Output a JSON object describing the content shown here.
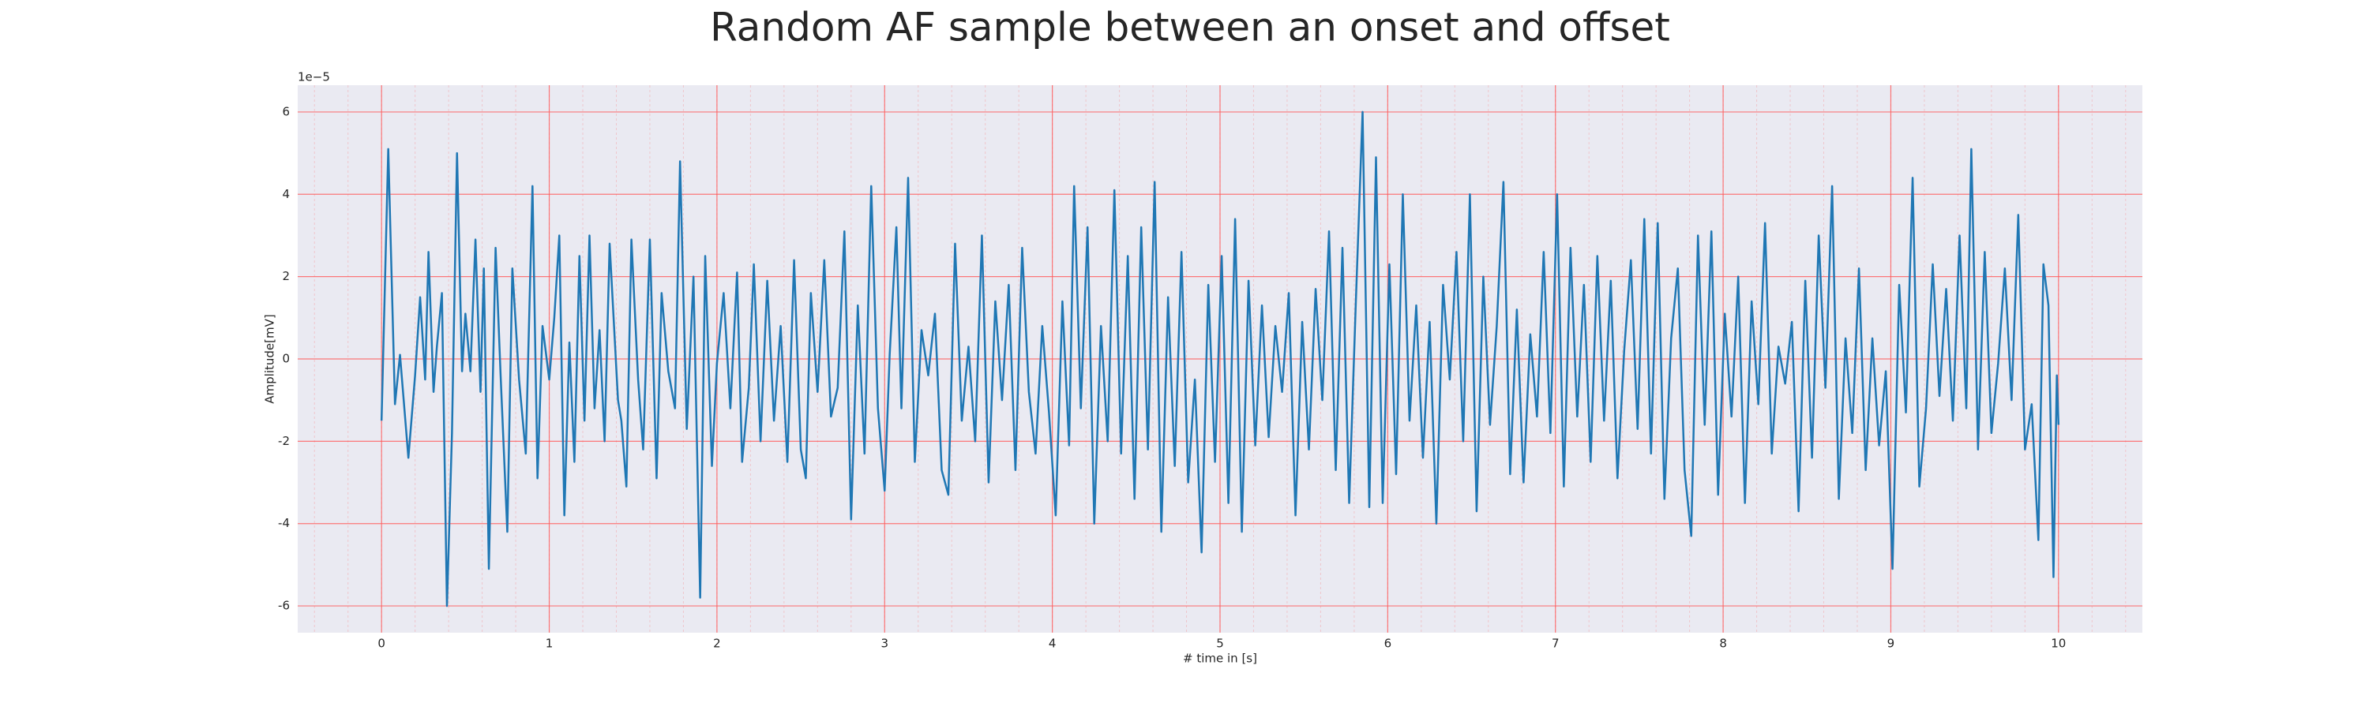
{
  "chart_data": {
    "type": "line",
    "title": "Random AF sample between an onset and offset",
    "x_label": "# time in [s]",
    "y_label": "Amplitude[mV]",
    "y_offset_label": "1e−5",
    "xlim": [
      -0.5,
      10.5
    ],
    "ylim": [
      -6.65,
      6.65
    ],
    "xticks": [
      0,
      1,
      2,
      3,
      4,
      5,
      6,
      7,
      8,
      9,
      10
    ],
    "yticks": [
      -6,
      -4,
      -2,
      0,
      2,
      4,
      6
    ],
    "grid": true,
    "grid_color": "#ff5a5a",
    "background": "#eaeaf2",
    "series": [
      {
        "color": "#1f77b4",
        "x": [
          0,
          0.04,
          0.08,
          0.11,
          0.16,
          0.2,
          0.23,
          0.26,
          0.28,
          0.31,
          0.33,
          0.36,
          0.39,
          0.42,
          0.45,
          0.48,
          0.5,
          0.53,
          0.56,
          0.59,
          0.61,
          0.64,
          0.68,
          0.71,
          0.75,
          0.78,
          0.82,
          0.86,
          0.9,
          0.93,
          0.96,
          1.0,
          1.03,
          1.06,
          1.09,
          1.12,
          1.15,
          1.18,
          1.21,
          1.24,
          1.27,
          1.3,
          1.33,
          1.36,
          1.41,
          1.43,
          1.46,
          1.49,
          1.53,
          1.56,
          1.6,
          1.64,
          1.67,
          1.71,
          1.75,
          1.78,
          1.82,
          1.86,
          1.9,
          1.93,
          1.97,
          2.0,
          2.04,
          2.08,
          2.12,
          2.15,
          2.19,
          2.22,
          2.26,
          2.3,
          2.34,
          2.38,
          2.42,
          2.46,
          2.5,
          2.53,
          2.56,
          2.6,
          2.64,
          2.68,
          2.72,
          2.76,
          2.8,
          2.84,
          2.88,
          2.92,
          2.96,
          3.0,
          3.03,
          3.07,
          3.1,
          3.14,
          3.18,
          3.22,
          3.26,
          3.3,
          3.34,
          3.38,
          3.42,
          3.46,
          3.5,
          3.54,
          3.58,
          3.62,
          3.66,
          3.7,
          3.74,
          3.78,
          3.82,
          3.86,
          3.9,
          3.94,
          3.98,
          4.02,
          4.06,
          4.1,
          4.13,
          4.17,
          4.21,
          4.25,
          4.29,
          4.33,
          4.37,
          4.41,
          4.45,
          4.49,
          4.53,
          4.57,
          4.61,
          4.65,
          4.69,
          4.73,
          4.77,
          4.81,
          4.85,
          4.89,
          4.93,
          4.97,
          5.01,
          5.05,
          5.09,
          5.13,
          5.17,
          5.21,
          5.25,
          5.29,
          5.33,
          5.37,
          5.41,
          5.45,
          5.49,
          5.53,
          5.57,
          5.61,
          5.65,
          5.69,
          5.73,
          5.77,
          5.81,
          5.85,
          5.89,
          5.93,
          5.97,
          6.01,
          6.05,
          6.09,
          6.13,
          6.17,
          6.21,
          6.25,
          6.29,
          6.33,
          6.37,
          6.41,
          6.45,
          6.49,
          6.53,
          6.57,
          6.61,
          6.65,
          6.69,
          6.73,
          6.77,
          6.81,
          6.85,
          6.89,
          6.93,
          6.97,
          7.01,
          7.05,
          7.09,
          7.13,
          7.17,
          7.21,
          7.25,
          7.29,
          7.33,
          7.37,
          7.41,
          7.45,
          7.49,
          7.53,
          7.57,
          7.61,
          7.65,
          7.69,
          7.73,
          7.77,
          7.81,
          7.85,
          7.89,
          7.93,
          7.97,
          8.01,
          8.05,
          8.09,
          8.13,
          8.17,
          8.21,
          8.25,
          8.29,
          8.33,
          8.37,
          8.41,
          8.45,
          8.49,
          8.53,
          8.57,
          8.61,
          8.65,
          8.69,
          8.73,
          8.77,
          8.81,
          8.85,
          8.89,
          8.93,
          8.97,
          9.01,
          9.05,
          9.09,
          9.13,
          9.17,
          9.21,
          9.25,
          9.29,
          9.33,
          9.37,
          9.41,
          9.45,
          9.48,
          9.52,
          9.56,
          9.6,
          9.64,
          9.68,
          9.72,
          9.76,
          9.8,
          9.84,
          9.88,
          9.91,
          9.94,
          9.97,
          9.99,
          10.0
        ],
        "values": [
          -1.5,
          5.1,
          -1.1,
          0.1,
          -2.4,
          -0.4,
          1.5,
          -0.5,
          2.6,
          -0.8,
          0.3,
          1.6,
          -6.0,
          -1.8,
          5.0,
          -0.3,
          1.1,
          -0.3,
          2.9,
          -0.8,
          2.2,
          -5.1,
          2.7,
          -0.4,
          -4.2,
          2.2,
          -0.5,
          -2.3,
          4.2,
          -2.9,
          0.8,
          -0.5,
          1.0,
          3.0,
          -3.8,
          0.4,
          -2.5,
          2.5,
          -1.5,
          3.0,
          -1.2,
          0.7,
          -2.0,
          2.8,
          -1.0,
          -1.5,
          -3.1,
          2.9,
          -0.5,
          -2.2,
          2.9,
          -2.9,
          1.6,
          -0.3,
          -1.2,
          4.8,
          -1.7,
          2.0,
          -5.8,
          2.5,
          -2.6,
          -0.1,
          1.6,
          -1.2,
          2.1,
          -2.5,
          -0.7,
          2.3,
          -2.0,
          1.9,
          -1.5,
          0.8,
          -2.5,
          2.4,
          -2.2,
          -2.9,
          1.6,
          -0.8,
          2.4,
          -1.4,
          -0.7,
          3.1,
          -3.9,
          1.3,
          -2.3,
          4.2,
          -1.2,
          -3.2,
          0.1,
          3.2,
          -1.2,
          4.4,
          -2.5,
          0.7,
          -0.4,
          1.1,
          -2.7,
          -3.3,
          2.8,
          -1.5,
          0.3,
          -2.0,
          3.0,
          -3.0,
          1.4,
          -1.0,
          1.8,
          -2.7,
          2.7,
          -0.8,
          -2.3,
          0.8,
          -1.3,
          -3.8,
          1.4,
          -2.1,
          4.2,
          -1.2,
          3.2,
          -4.0,
          0.8,
          -2.0,
          4.1,
          -2.3,
          2.5,
          -3.4,
          3.2,
          -2.2,
          4.3,
          -4.2,
          1.5,
          -2.6,
          2.6,
          -3.0,
          -0.5,
          -4.7,
          1.8,
          -2.5,
          2.5,
          -3.5,
          3.4,
          -4.2,
          1.9,
          -2.1,
          1.3,
          -1.9,
          0.8,
          -0.8,
          1.6,
          -3.8,
          0.9,
          -2.2,
          1.7,
          -1.0,
          3.1,
          -2.7,
          2.7,
          -3.5,
          1.4,
          6.0,
          -3.6,
          4.9,
          -3.5,
          2.3,
          -2.8,
          4.0,
          -1.5,
          1.3,
          -2.4,
          0.9,
          -4.0,
          1.8,
          -0.5,
          2.6,
          -2.0,
          4.0,
          -3.7,
          2.0,
          -1.6,
          0.8,
          4.3,
          -2.8,
          1.2,
          -3.0,
          0.6,
          -1.4,
          2.6,
          -1.8,
          4.0,
          -3.1,
          2.7,
          -1.4,
          1.8,
          -2.5,
          2.5,
          -1.5,
          1.9,
          -2.9,
          0.2,
          2.4,
          -1.7,
          3.4,
          -2.3,
          3.3,
          -3.4,
          0.5,
          2.2,
          -2.7,
          -4.3,
          3.0,
          -1.6,
          3.1,
          -3.3,
          1.1,
          -1.4,
          2.0,
          -3.5,
          1.4,
          -1.1,
          3.3,
          -2.3,
          0.3,
          -0.6,
          0.9,
          -3.7,
          1.9,
          -2.4,
          3.0,
          -0.7,
          4.2,
          -3.4,
          0.5,
          -1.8,
          2.2,
          -2.7,
          0.5,
          -2.1,
          -0.3,
          -5.1,
          1.8,
          -1.3,
          4.4,
          -3.1,
          -1.2,
          2.3,
          -0.9,
          1.7,
          -1.5,
          3.0,
          -1.2,
          5.1,
          -2.2,
          2.6,
          -1.8,
          -0.1,
          2.2,
          -1.0,
          3.5,
          -2.2,
          -1.1,
          -4.4,
          2.3,
          1.3,
          -5.3,
          -0.4,
          -1.6
        ]
      }
    ]
  }
}
